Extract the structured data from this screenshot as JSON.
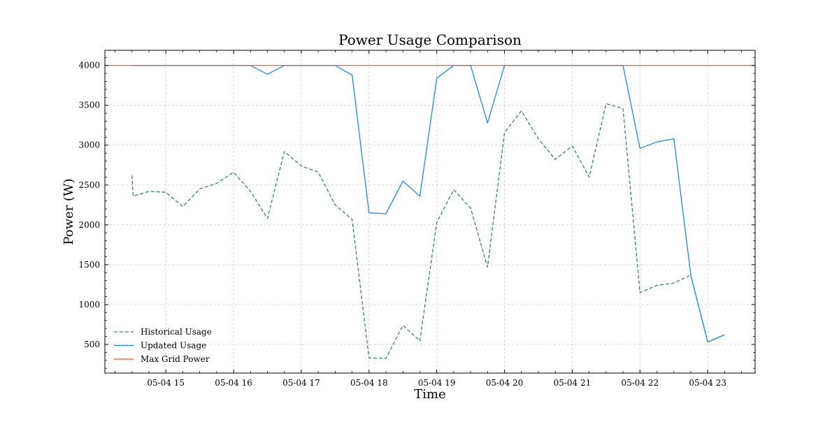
{
  "chart_data": {
    "type": "line",
    "title": "Power Usage Comparison",
    "xlabel": "Time",
    "ylabel": "Power (W)",
    "x_range": [
      "2024-05-04 14:06",
      "2024-05-04 23:42"
    ],
    "ylim": [
      140,
      4190
    ],
    "grid": true,
    "legend_position": "lower-left",
    "x": [
      "2024-05-04 14:30",
      "2024-05-04 14:45",
      "2024-05-04 15:00",
      "2024-05-04 15:15",
      "2024-05-04 15:30",
      "2024-05-04 15:45",
      "2024-05-04 16:00",
      "2024-05-04 16:15",
      "2024-05-04 16:30",
      "2024-05-04 16:45",
      "2024-05-04 17:00",
      "2024-05-04 17:15",
      "2024-05-04 17:30",
      "2024-05-04 17:45",
      "2024-05-04 18:00",
      "2024-05-04 18:15",
      "2024-05-04 18:30",
      "2024-05-04 18:45",
      "2024-05-04 19:00",
      "2024-05-04 19:15",
      "2024-05-04 19:30",
      "2024-05-04 19:45",
      "2024-05-04 20:00",
      "2024-05-04 20:15",
      "2024-05-04 20:30",
      "2024-05-04 20:45",
      "2024-05-04 21:00",
      "2024-05-04 21:15",
      "2024-05-04 21:30",
      "2024-05-04 21:45",
      "2024-05-04 22:00",
      "2024-05-04 22:15",
      "2024-05-04 22:30",
      "2024-05-04 22:45",
      "2024-05-04 23:00",
      "2024-05-04 23:15"
    ],
    "series": [
      {
        "name": "Historical Usage",
        "color": "#2e8b57",
        "dash": "dashed",
        "x": [
          "2024-05-04 14:30",
          "2024-05-04 14:31",
          "2024-05-04 14:45",
          "2024-05-04 15:00",
          "2024-05-04 15:15",
          "2024-05-04 15:30",
          "2024-05-04 15:45",
          "2024-05-04 16:00",
          "2024-05-04 16:15",
          "2024-05-04 16:30",
          "2024-05-04 16:45",
          "2024-05-04 17:00",
          "2024-05-04 17:15",
          "2024-05-04 17:30",
          "2024-05-04 17:45",
          "2024-05-04 18:00",
          "2024-05-04 18:15",
          "2024-05-04 18:30",
          "2024-05-04 18:45",
          "2024-05-04 19:00",
          "2024-05-04 19:15",
          "2024-05-04 19:30",
          "2024-05-04 19:45",
          "2024-05-04 20:00",
          "2024-05-04 20:15",
          "2024-05-04 20:30",
          "2024-05-04 20:45",
          "2024-05-04 21:00",
          "2024-05-04 21:15",
          "2024-05-04 21:30",
          "2024-05-04 21:45",
          "2024-05-04 22:00",
          "2024-05-04 22:15",
          "2024-05-04 22:30",
          "2024-05-04 22:45",
          "2024-05-04 23:00",
          "2024-05-04 23:15"
        ],
        "values": [
          2620,
          2360,
          2420,
          2410,
          2230,
          2450,
          2520,
          2660,
          2420,
          2080,
          2920,
          2740,
          2660,
          2250,
          2070,
          330,
          325,
          740,
          545,
          2030,
          2440,
          2210,
          1470,
          3160,
          3430,
          3080,
          2820,
          2990,
          2600,
          3520,
          3460,
          1150,
          1240,
          1270,
          1370,
          530,
          620
        ]
      },
      {
        "name": "Updated Usage",
        "color": "#1e88e5",
        "dash": "solid",
        "x": [
          "2024-05-04 14:30",
          "2024-05-04 14:45",
          "2024-05-04 15:00",
          "2024-05-04 15:15",
          "2024-05-04 15:30",
          "2024-05-04 15:45",
          "2024-05-04 16:00",
          "2024-05-04 16:15",
          "2024-05-04 16:30",
          "2024-05-04 16:45",
          "2024-05-04 17:00",
          "2024-05-04 17:15",
          "2024-05-04 17:30",
          "2024-05-04 17:45",
          "2024-05-04 18:00",
          "2024-05-04 18:15",
          "2024-05-04 18:30",
          "2024-05-04 18:45",
          "2024-05-04 19:00",
          "2024-05-04 19:15",
          "2024-05-04 19:30",
          "2024-05-04 19:45",
          "2024-05-04 20:00",
          "2024-05-04 20:15",
          "2024-05-04 20:30",
          "2024-05-04 20:45",
          "2024-05-04 21:00",
          "2024-05-04 21:15",
          "2024-05-04 21:30",
          "2024-05-04 21:45",
          "2024-05-04 22:00",
          "2024-05-04 22:15",
          "2024-05-04 22:30",
          "2024-05-04 22:45",
          "2024-05-04 23:00",
          "2024-05-04 23:15"
        ],
        "values": [
          4000,
          4000,
          4000,
          4000,
          4000,
          4000,
          4000,
          4000,
          3890,
          4000,
          4000,
          4000,
          4000,
          3880,
          2150,
          2140,
          2550,
          2360,
          3840,
          4000,
          4000,
          3280,
          4000,
          4000,
          4000,
          4000,
          4000,
          4000,
          4000,
          4000,
          2960,
          3040,
          3080,
          1370,
          530,
          620
        ]
      },
      {
        "name": "Max Grid Power",
        "color": "#f4511e",
        "dash": "solid",
        "constant": 4000
      }
    ],
    "x_ticks": [
      {
        "at": "2024-05-04 15:00",
        "label": "05-04 15"
      },
      {
        "at": "2024-05-04 16:00",
        "label": "05-04 16"
      },
      {
        "at": "2024-05-04 17:00",
        "label": "05-04 17"
      },
      {
        "at": "2024-05-04 18:00",
        "label": "05-04 18"
      },
      {
        "at": "2024-05-04 19:00",
        "label": "05-04 19"
      },
      {
        "at": "2024-05-04 20:00",
        "label": "05-04 20"
      },
      {
        "at": "2024-05-04 21:00",
        "label": "05-04 21"
      },
      {
        "at": "2024-05-04 22:00",
        "label": "05-04 22"
      },
      {
        "at": "2024-05-04 23:00",
        "label": "05-04 23"
      }
    ],
    "y_ticks": [
      500,
      1000,
      1500,
      2000,
      2500,
      3000,
      3500,
      4000
    ]
  }
}
